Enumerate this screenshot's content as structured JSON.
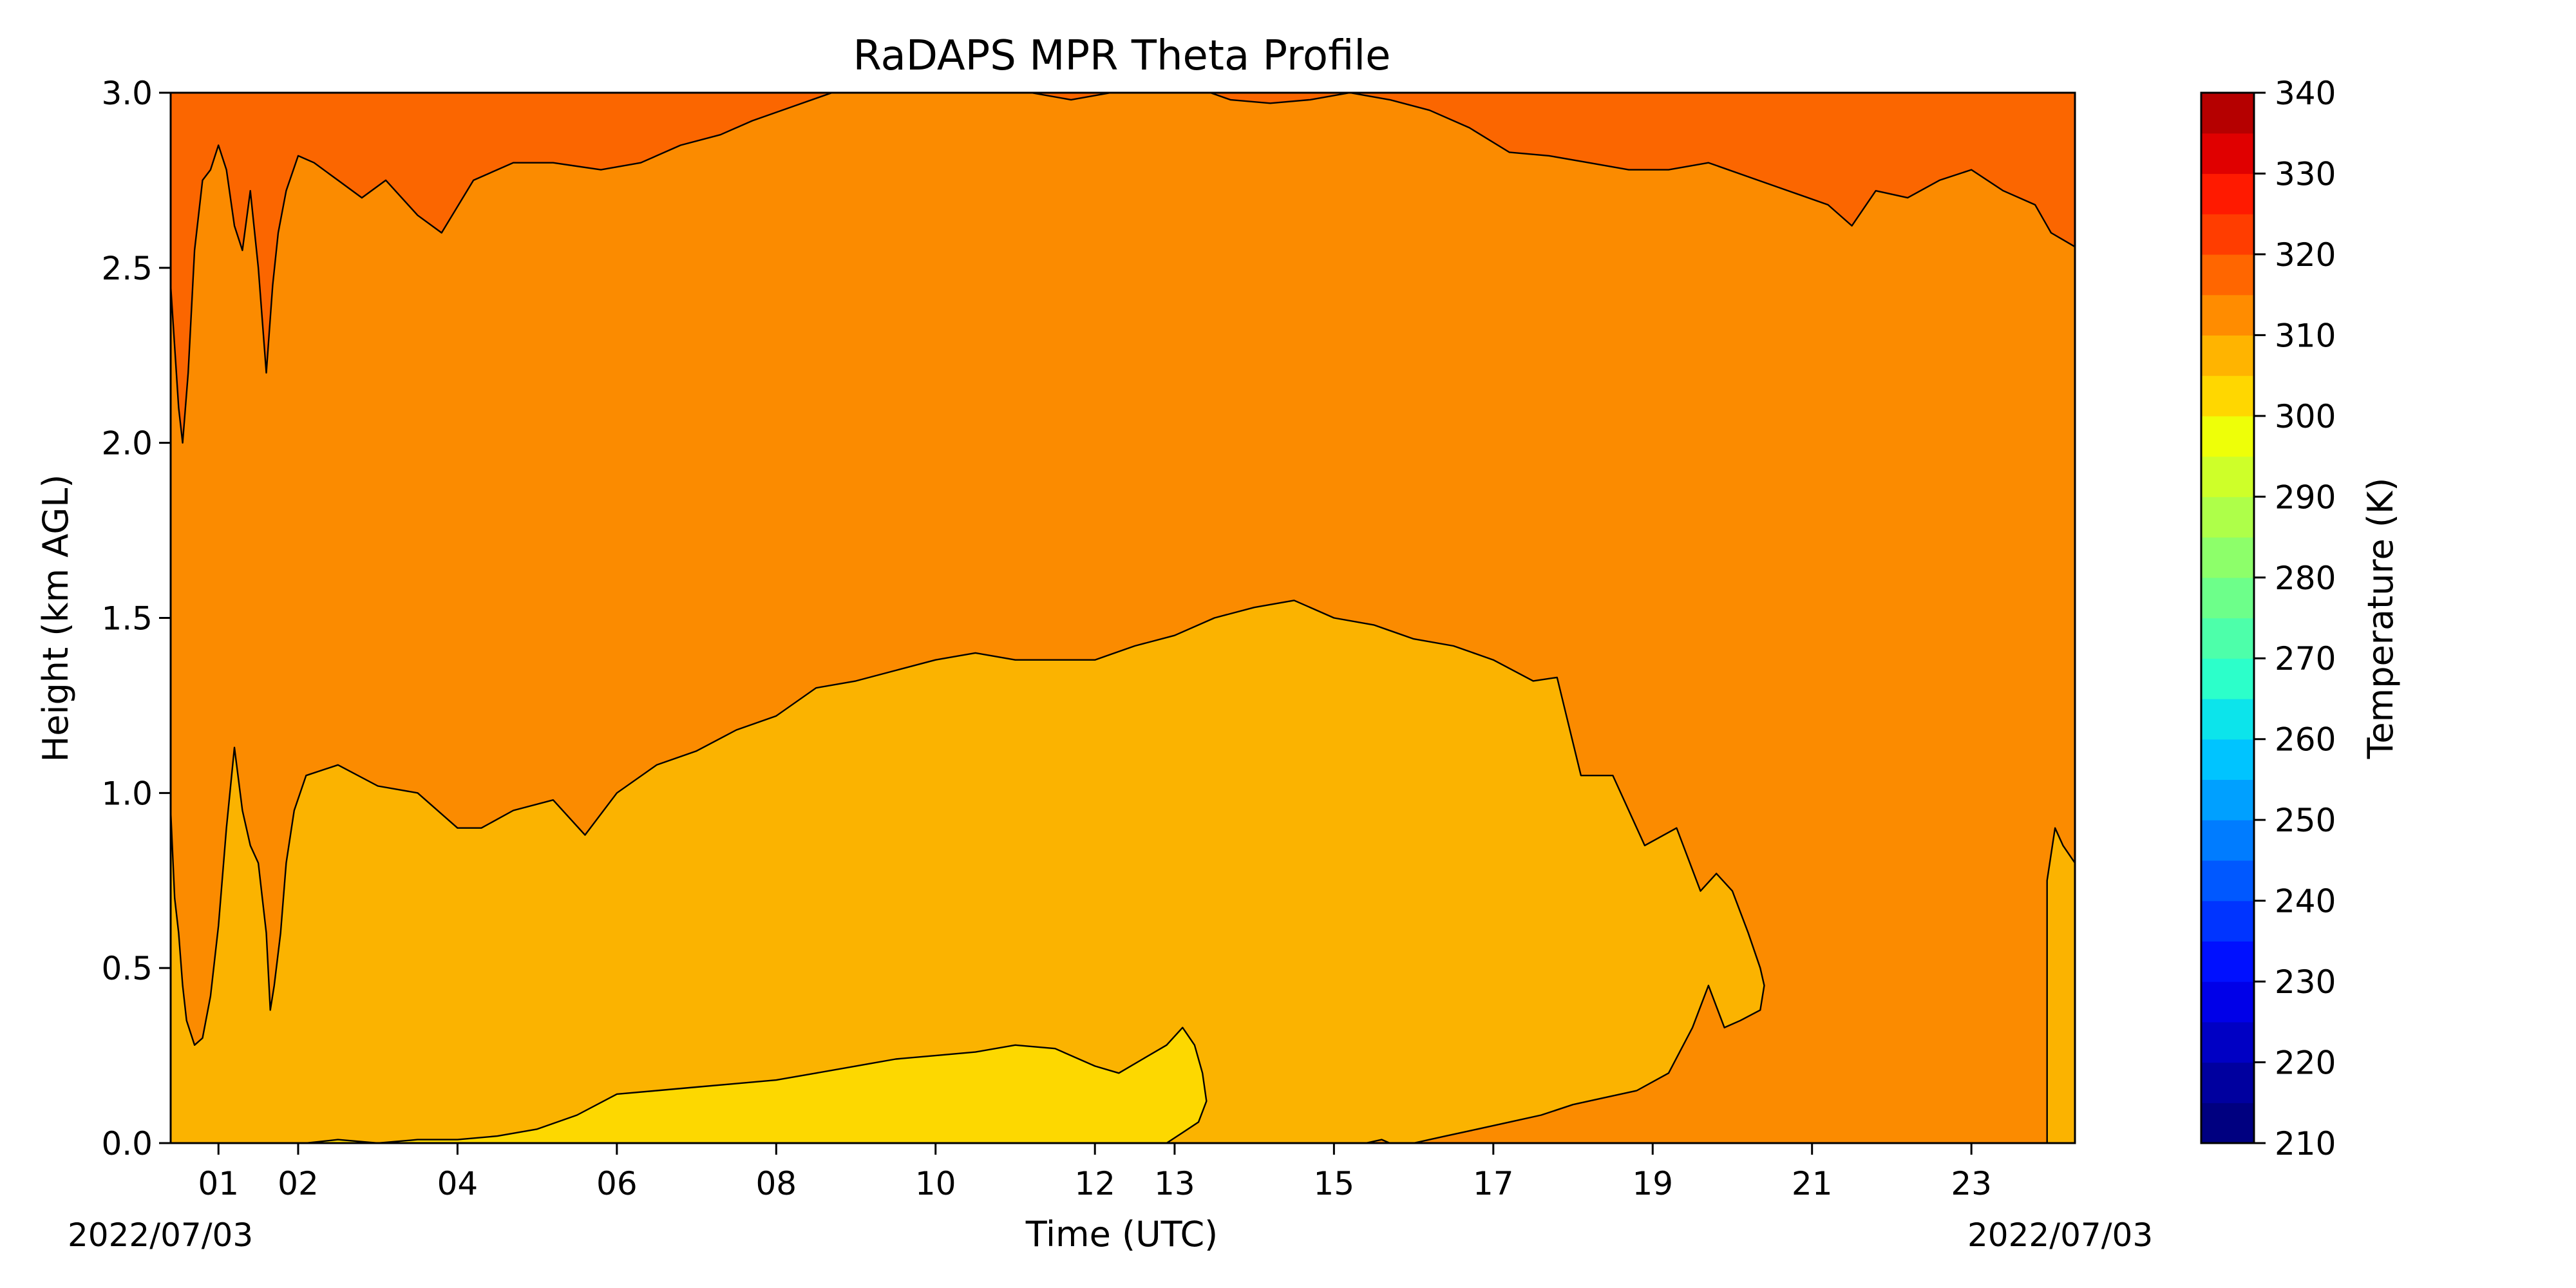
{
  "chart_data": {
    "type": "heatmap",
    "title": "RaDAPS MPR Theta Profile",
    "xlabel": "Time (UTC)",
    "ylabel": "Height (km AGL)",
    "date_start_label": "2022/07/03",
    "date_end_label": "2022/07/03",
    "xlim_hours": [
      0.4,
      24.3
    ],
    "ylim_km": [
      0,
      3.0
    ],
    "x_ticks": [
      {
        "hour": 1,
        "label": "01"
      },
      {
        "hour": 2,
        "label": "02"
      },
      {
        "hour": 4,
        "label": "04"
      },
      {
        "hour": 6,
        "label": "06"
      },
      {
        "hour": 8,
        "label": "08"
      },
      {
        "hour": 10,
        "label": "10"
      },
      {
        "hour": 12,
        "label": "12"
      },
      {
        "hour": 13,
        "label": "13"
      },
      {
        "hour": 15,
        "label": "15"
      },
      {
        "hour": 17,
        "label": "17"
      },
      {
        "hour": 19,
        "label": "19"
      },
      {
        "hour": 21,
        "label": "21"
      },
      {
        "hour": 23,
        "label": "23"
      }
    ],
    "y_ticks": [
      "0.0",
      "0.5",
      "1.0",
      "1.5",
      "2.0",
      "2.5",
      "3.0"
    ],
    "colorbar": {
      "label": "Temperature (K)",
      "range": [
        210,
        340
      ],
      "ticks": [
        "210",
        "220",
        "230",
        "240",
        "250",
        "260",
        "270",
        "280",
        "290",
        "300",
        "310",
        "320",
        "330",
        "340"
      ],
      "levels": [
        {
          "from": 210,
          "to": 215,
          "color": "#000080"
        },
        {
          "from": 215,
          "to": 220,
          "color": "#00009f"
        },
        {
          "from": 220,
          "to": 225,
          "color": "#0000c4"
        },
        {
          "from": 225,
          "to": 230,
          "color": "#0000e8"
        },
        {
          "from": 230,
          "to": 235,
          "color": "#0010ff"
        },
        {
          "from": 235,
          "to": 240,
          "color": "#0034ff"
        },
        {
          "from": 240,
          "to": 245,
          "color": "#0058ff"
        },
        {
          "from": 245,
          "to": 250,
          "color": "#007cff"
        },
        {
          "from": 250,
          "to": 255,
          "color": "#00a0ff"
        },
        {
          "from": 255,
          "to": 260,
          "color": "#00c4ff"
        },
        {
          "from": 260,
          "to": 265,
          "color": "#0ce4eb"
        },
        {
          "from": 265,
          "to": 270,
          "color": "#2cffca"
        },
        {
          "from": 270,
          "to": 275,
          "color": "#4dffaa"
        },
        {
          "from": 275,
          "to": 280,
          "color": "#6dff8a"
        },
        {
          "from": 280,
          "to": 285,
          "color": "#8dff6a"
        },
        {
          "from": 285,
          "to": 290,
          "color": "#aeff49"
        },
        {
          "from": 290,
          "to": 295,
          "color": "#ceff29"
        },
        {
          "from": 295,
          "to": 300,
          "color": "#eeff08"
        },
        {
          "from": 300,
          "to": 305,
          "color": "#ffd700"
        },
        {
          "from": 305,
          "to": 310,
          "color": "#ffb400"
        },
        {
          "from": 310,
          "to": 315,
          "color": "#ff8c00"
        },
        {
          "from": 315,
          "to": 320,
          "color": "#ff6600"
        },
        {
          "from": 320,
          "to": 325,
          "color": "#ff3d00"
        },
        {
          "from": 325,
          "to": 330,
          "color": "#ff1a00"
        },
        {
          "from": 330,
          "to": 335,
          "color": "#e00000"
        },
        {
          "from": 335,
          "to": 340,
          "color": "#b50000"
        }
      ]
    },
    "contour_regions": [
      {
        "band": "305-310 K",
        "color": "#fbb300"
      },
      {
        "band": "300-305 K",
        "color": "#fdd800"
      },
      {
        "band": "310-315 K",
        "color": "#fb8b00"
      },
      {
        "band": "315-320 K",
        "color": "#fb6600"
      }
    ],
    "contour_boundaries": {
      "top_315_height_km": [
        [
          0.4,
          2.45
        ],
        [
          0.5,
          2.1
        ],
        [
          0.55,
          2.0
        ],
        [
          0.62,
          2.2
        ],
        [
          0.7,
          2.55
        ],
        [
          0.8,
          2.75
        ],
        [
          0.9,
          2.78
        ],
        [
          1.0,
          2.85
        ],
        [
          1.1,
          2.78
        ],
        [
          1.2,
          2.62
        ],
        [
          1.3,
          2.55
        ],
        [
          1.4,
          2.72
        ],
        [
          1.5,
          2.5
        ],
        [
          1.6,
          2.2
        ],
        [
          1.68,
          2.45
        ],
        [
          1.75,
          2.6
        ],
        [
          1.85,
          2.72
        ],
        [
          2.0,
          2.82
        ],
        [
          2.2,
          2.8
        ],
        [
          2.5,
          2.75
        ],
        [
          2.8,
          2.7
        ],
        [
          3.1,
          2.75
        ],
        [
          3.5,
          2.65
        ],
        [
          3.8,
          2.6
        ],
        [
          4.2,
          2.75
        ],
        [
          4.7,
          2.8
        ],
        [
          5.2,
          2.8
        ],
        [
          5.8,
          2.78
        ],
        [
          6.3,
          2.8
        ],
        [
          6.8,
          2.85
        ],
        [
          7.3,
          2.88
        ],
        [
          7.7,
          2.92
        ],
        [
          8.2,
          2.96
        ],
        [
          8.7,
          3.0
        ],
        [
          9.2,
          3.05
        ],
        [
          9.7,
          3.05
        ],
        [
          10.2,
          3.05
        ],
        [
          10.7,
          3.05
        ],
        [
          11.2,
          3.0
        ],
        [
          11.7,
          2.98
        ],
        [
          12.2,
          3.0
        ],
        [
          12.7,
          3.05
        ],
        [
          13.2,
          3.02
        ],
        [
          13.7,
          2.98
        ],
        [
          14.2,
          2.97
        ],
        [
          14.7,
          2.98
        ],
        [
          15.2,
          3.0
        ],
        [
          15.7,
          2.98
        ],
        [
          16.2,
          2.95
        ],
        [
          16.7,
          2.9
        ],
        [
          17.2,
          2.83
        ],
        [
          17.7,
          2.82
        ],
        [
          18.2,
          2.8
        ],
        [
          18.7,
          2.78
        ],
        [
          19.2,
          2.78
        ],
        [
          19.7,
          2.8
        ],
        [
          20.2,
          2.76
        ],
        [
          20.7,
          2.72
        ],
        [
          21.2,
          2.68
        ],
        [
          21.5,
          2.62
        ],
        [
          21.8,
          2.72
        ],
        [
          22.2,
          2.7
        ],
        [
          22.6,
          2.75
        ],
        [
          23.0,
          2.78
        ],
        [
          23.4,
          2.72
        ],
        [
          23.8,
          2.68
        ],
        [
          24.0,
          2.6
        ],
        [
          24.3,
          2.56
        ]
      ],
      "top_305_height_km": [
        [
          0.4,
          0.95
        ],
        [
          0.45,
          0.7
        ],
        [
          0.5,
          0.6
        ],
        [
          0.55,
          0.45
        ],
        [
          0.6,
          0.35
        ],
        [
          0.7,
          0.28
        ],
        [
          0.8,
          0.3
        ],
        [
          0.9,
          0.42
        ],
        [
          1.0,
          0.62
        ],
        [
          1.1,
          0.9
        ],
        [
          1.2,
          1.13
        ],
        [
          1.3,
          0.95
        ],
        [
          1.4,
          0.85
        ],
        [
          1.5,
          0.8
        ],
        [
          1.6,
          0.6
        ],
        [
          1.65,
          0.38
        ],
        [
          1.7,
          0.45
        ],
        [
          1.78,
          0.6
        ],
        [
          1.85,
          0.8
        ],
        [
          1.95,
          0.95
        ],
        [
          2.1,
          1.05
        ],
        [
          2.5,
          1.08
        ],
        [
          3.0,
          1.02
        ],
        [
          3.5,
          1.0
        ],
        [
          4.0,
          0.9
        ],
        [
          4.3,
          0.9
        ],
        [
          4.7,
          0.95
        ],
        [
          5.2,
          0.98
        ],
        [
          5.6,
          0.88
        ],
        [
          6.0,
          1.0
        ],
        [
          6.5,
          1.08
        ],
        [
          7.0,
          1.12
        ],
        [
          7.5,
          1.18
        ],
        [
          8.0,
          1.22
        ],
        [
          8.5,
          1.3
        ],
        [
          9.0,
          1.32
        ],
        [
          9.5,
          1.35
        ],
        [
          10.0,
          1.38
        ],
        [
          10.5,
          1.4
        ],
        [
          11.0,
          1.38
        ],
        [
          11.5,
          1.38
        ],
        [
          12.0,
          1.38
        ],
        [
          12.5,
          1.42
        ],
        [
          13.0,
          1.45
        ],
        [
          13.5,
          1.5
        ],
        [
          14.0,
          1.53
        ],
        [
          14.5,
          1.55
        ],
        [
          15.0,
          1.5
        ],
        [
          15.5,
          1.48
        ],
        [
          16.0,
          1.44
        ],
        [
          16.5,
          1.42
        ],
        [
          17.0,
          1.38
        ],
        [
          17.5,
          1.32
        ],
        [
          17.8,
          1.33
        ],
        [
          18.1,
          1.05
        ],
        [
          18.5,
          1.05
        ],
        [
          18.9,
          0.85
        ],
        [
          19.3,
          0.9
        ],
        [
          19.6,
          0.72
        ],
        [
          19.8,
          0.77
        ],
        [
          20.0,
          0.72
        ],
        [
          20.2,
          0.6
        ],
        [
          20.35,
          0.5
        ],
        [
          20.4,
          0.45
        ],
        [
          20.35,
          0.38
        ],
        [
          20.1,
          0.35
        ],
        [
          19.9,
          0.33
        ],
        [
          19.7,
          0.45
        ],
        [
          19.5,
          0.33
        ],
        [
          19.2,
          0.2
        ],
        [
          18.8,
          0.15
        ],
        [
          18.4,
          0.13
        ],
        [
          18.0,
          0.11
        ],
        [
          17.6,
          0.08
        ],
        [
          17.2,
          0.06
        ],
        [
          16.8,
          0.04
        ],
        [
          16.4,
          0.02
        ],
        [
          16.0,
          0.0
        ],
        [
          15.7,
          0.0
        ],
        [
          15.6,
          0.01
        ],
        [
          15.4,
          0.0
        ]
      ],
      "right_305_region_km": [
        [
          23.95,
          0.0
        ],
        [
          23.95,
          0.75
        ],
        [
          24.05,
          0.9
        ],
        [
          24.15,
          0.85
        ],
        [
          24.3,
          0.8
        ],
        [
          24.3,
          0.0
        ]
      ],
      "yellow_300_region_km": [
        [
          2.1,
          0.0
        ],
        [
          2.5,
          0.01
        ],
        [
          3.0,
          0.0
        ],
        [
          3.5,
          0.01
        ],
        [
          4.0,
          0.01
        ],
        [
          4.5,
          0.02
        ],
        [
          5.0,
          0.04
        ],
        [
          5.5,
          0.08
        ],
        [
          6.0,
          0.14
        ],
        [
          6.5,
          0.15
        ],
        [
          7.0,
          0.16
        ],
        [
          7.5,
          0.17
        ],
        [
          8.0,
          0.18
        ],
        [
          8.5,
          0.2
        ],
        [
          9.0,
          0.22
        ],
        [
          9.5,
          0.24
        ],
        [
          10.0,
          0.25
        ],
        [
          10.5,
          0.26
        ],
        [
          11.0,
          0.28
        ],
        [
          11.5,
          0.27
        ],
        [
          12.0,
          0.22
        ],
        [
          12.3,
          0.2
        ],
        [
          12.6,
          0.24
        ],
        [
          12.9,
          0.28
        ],
        [
          13.1,
          0.33
        ],
        [
          13.25,
          0.28
        ],
        [
          13.35,
          0.2
        ],
        [
          13.4,
          0.12
        ],
        [
          13.3,
          0.06
        ],
        [
          13.1,
          0.03
        ],
        [
          12.9,
          0.0
        ]
      ]
    }
  }
}
